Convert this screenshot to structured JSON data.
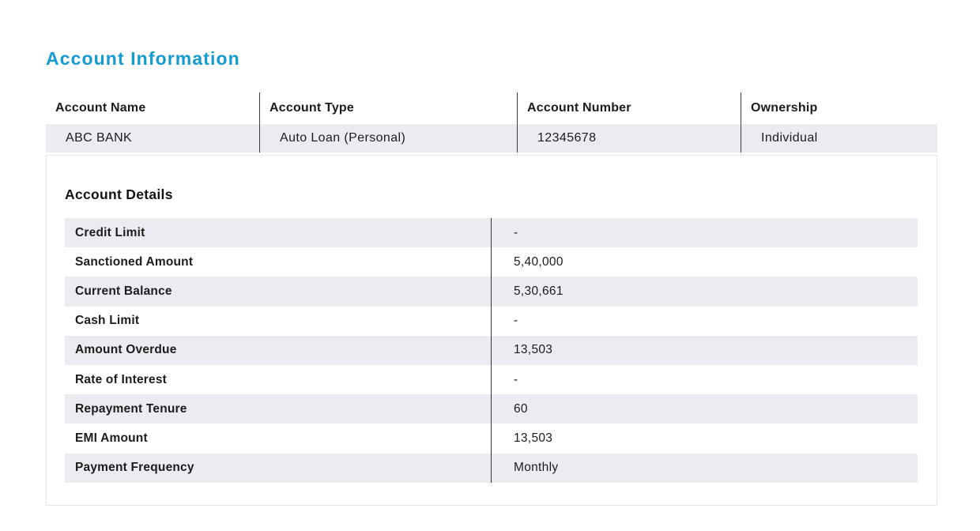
{
  "page": {
    "title": "Account Information",
    "colors": {
      "accent": "#149BD2",
      "stripe": "#ECEBF1"
    }
  },
  "summary": {
    "columns": [
      {
        "label": "Account Name",
        "value": "ABC BANK"
      },
      {
        "label": "Account Type",
        "value": "Auto Loan (Personal)"
      },
      {
        "label": "Account Number",
        "value": "12345678"
      },
      {
        "label": "Ownership",
        "value": "Individual"
      }
    ]
  },
  "details": {
    "heading": "Account Details",
    "rows": [
      {
        "label": "Credit Limit",
        "value": "-"
      },
      {
        "label": "Sanctioned Amount",
        "value": "5,40,000"
      },
      {
        "label": "Current Balance",
        "value": "5,30,661"
      },
      {
        "label": "Cash Limit",
        "value": "-"
      },
      {
        "label": "Amount Overdue",
        "value": "13,503"
      },
      {
        "label": "Rate of Interest",
        "value": "-"
      },
      {
        "label": "Repayment Tenure",
        "value": "60"
      },
      {
        "label": "EMI Amount",
        "value": "13,503"
      },
      {
        "label": "Payment Frequency",
        "value": "Monthly"
      }
    ]
  }
}
